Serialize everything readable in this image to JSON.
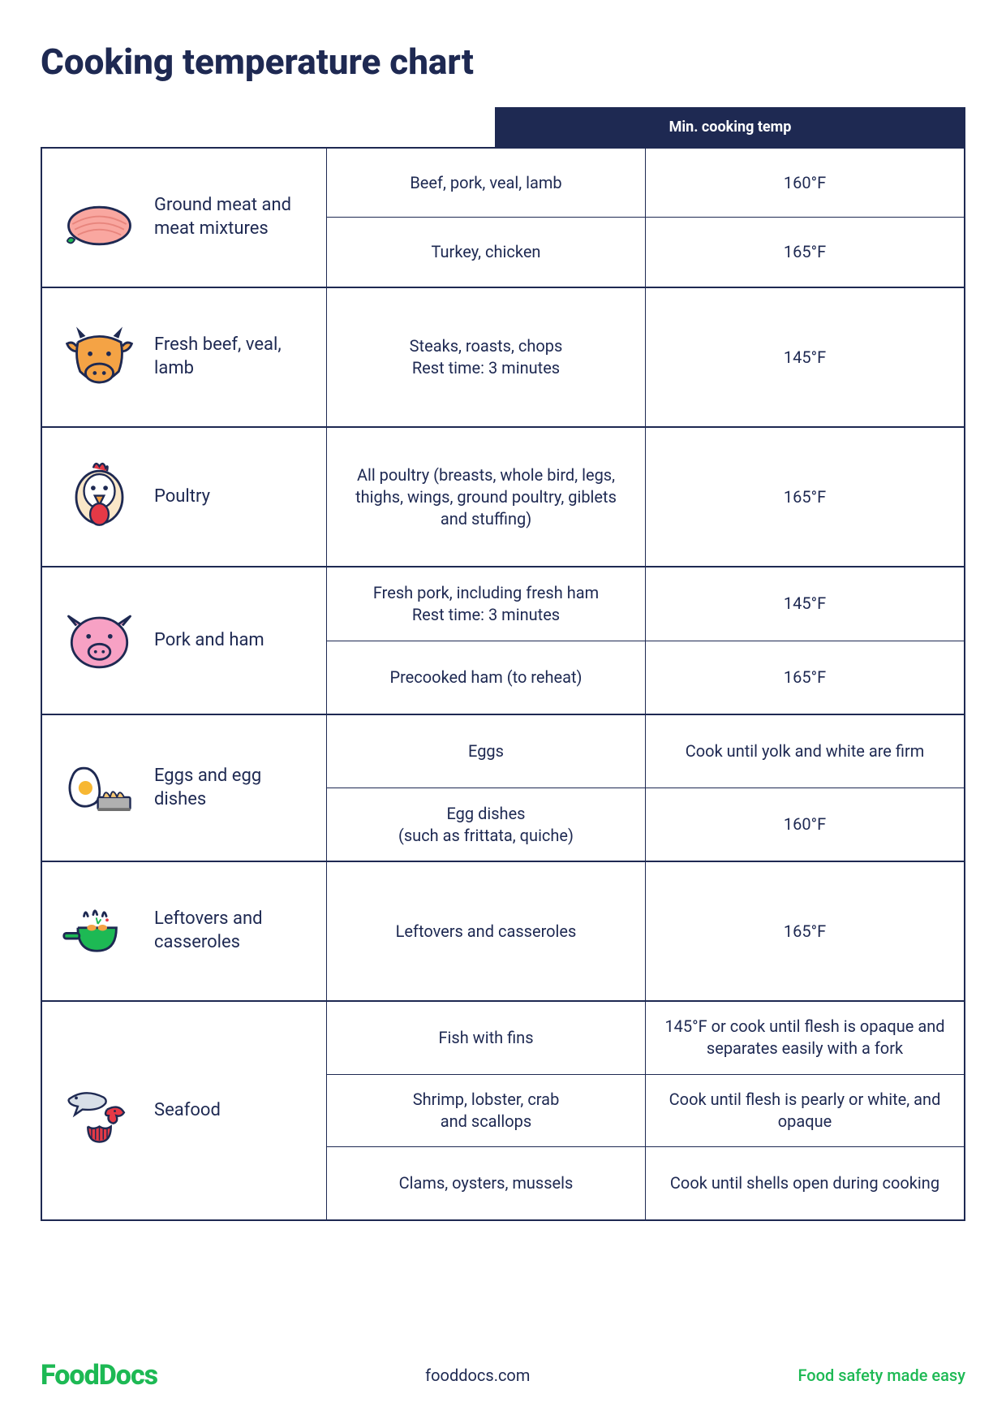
{
  "title": "Cooking temperature chart",
  "header": {
    "temp_label": "Min. cooking temp"
  },
  "colors": {
    "text": "#1e2952",
    "header_bg": "#1e2952",
    "accent": "#1db954",
    "border": "#1e2952",
    "background": "#ffffff"
  },
  "groups": [
    {
      "icon": "meat",
      "label": "Ground meat and meat mixtures",
      "rows": [
        {
          "item": "Beef, pork, veal, lamb",
          "temp": "160°F"
        },
        {
          "item": "Turkey, chicken",
          "temp": "165°F"
        }
      ]
    },
    {
      "icon": "cow",
      "label": "Fresh beef, veal, lamb",
      "rows": [
        {
          "item": "Steaks, roasts, chops\nRest time: 3 minutes",
          "temp": "145°F"
        }
      ]
    },
    {
      "icon": "chicken",
      "label": "Poultry",
      "rows": [
        {
          "item": "All poultry (breasts, whole bird, legs, thighs, wings, ground poultry, giblets and stuffing)",
          "temp": "165°F"
        }
      ]
    },
    {
      "icon": "pig",
      "label": "Pork and ham",
      "rows": [
        {
          "item": "Fresh pork, including fresh ham\nRest time: 3 minutes",
          "temp": "145°F"
        },
        {
          "item": "Precooked ham (to reheat)",
          "temp": "165°F"
        }
      ]
    },
    {
      "icon": "egg",
      "label": "Eggs and egg dishes",
      "rows": [
        {
          "item": "Eggs",
          "temp": "Cook until yolk and white are firm"
        },
        {
          "item": "Egg dishes\n(such as frittata, quiche)",
          "temp": "160°F"
        }
      ]
    },
    {
      "icon": "pan",
      "label": "Leftovers and casseroles",
      "rows": [
        {
          "item": "Leftovers and casseroles",
          "temp": "165°F"
        }
      ]
    },
    {
      "icon": "fish",
      "label": "Seafood",
      "rows": [
        {
          "item": "Fish with fins",
          "temp": "145°F or cook until flesh is opaque and separates easily with a fork"
        },
        {
          "item": "Shrimp, lobster, crab\nand scallops",
          "temp": "Cook until flesh is pearly or white, and opaque"
        },
        {
          "item": "Clams, oysters, mussels",
          "temp": "Cook until shells open during cooking"
        }
      ]
    }
  ],
  "row_heights": {
    "default": 85,
    "single_large": 170,
    "seafood": 78
  },
  "footer": {
    "brand_pre": "Food",
    "brand_post": "Docs",
    "site": "fooddocs.com",
    "tagline": "Food safety made easy"
  },
  "typography": {
    "title_fontsize": 44,
    "title_weight": 800,
    "body_fontsize": 20,
    "category_fontsize": 22,
    "header_fontsize": 18
  }
}
